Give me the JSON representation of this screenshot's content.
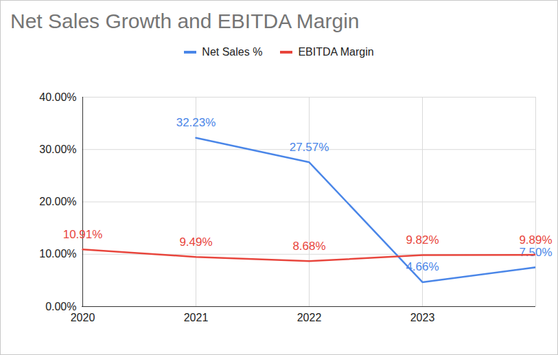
{
  "chart_data": {
    "type": "line",
    "title": "Net Sales Growth and EBITDA Margin",
    "categories": [
      "2020",
      "2021",
      "2022",
      "2023",
      null
    ],
    "series": [
      {
        "name": "Net Sales %",
        "color": "#4a86e8",
        "values": [
          null,
          32.23,
          27.57,
          4.66,
          7.5
        ],
        "value_labels": [
          null,
          "32.23%",
          "27.57%",
          "4.66%",
          "7.50%"
        ]
      },
      {
        "name": "EBITDA Margin",
        "color": "#e8453c",
        "values": [
          10.91,
          9.49,
          8.68,
          9.82,
          9.89
        ],
        "value_labels": [
          "10.91%",
          "9.49%",
          "8.68%",
          "9.82%",
          "9.89%"
        ]
      }
    ],
    "ylim": [
      0,
      40
    ],
    "yticks": [
      {
        "value": 0,
        "label": "0.00%"
      },
      {
        "value": 10,
        "label": "10.00%"
      },
      {
        "value": 20,
        "label": "20.00%"
      },
      {
        "value": 30,
        "label": "30.00%"
      },
      {
        "value": 40,
        "label": "40.00%"
      }
    ],
    "grid": true,
    "data_labels": true,
    "legend": "top"
  }
}
